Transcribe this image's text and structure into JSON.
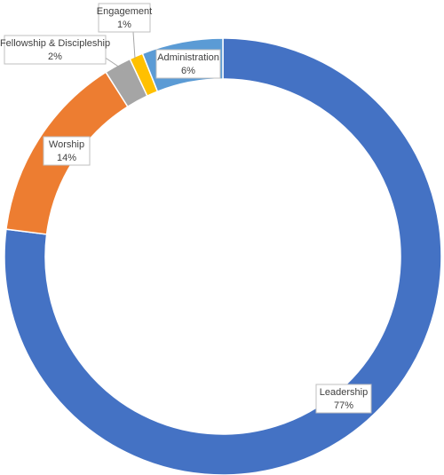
{
  "chart_data": {
    "type": "donut",
    "categories": [
      "Leadership",
      "Worship",
      "Fellowship & Discipleship",
      "Engagement",
      "Administration"
    ],
    "values": [
      77,
      14,
      2,
      1,
      6
    ],
    "value_labels": [
      "77%",
      "14%",
      "2%",
      "1%",
      "6%"
    ],
    "colors": [
      "#4472c4",
      "#ed7d31",
      "#a5a5a5",
      "#ffc000",
      "#5b9bd5"
    ]
  }
}
